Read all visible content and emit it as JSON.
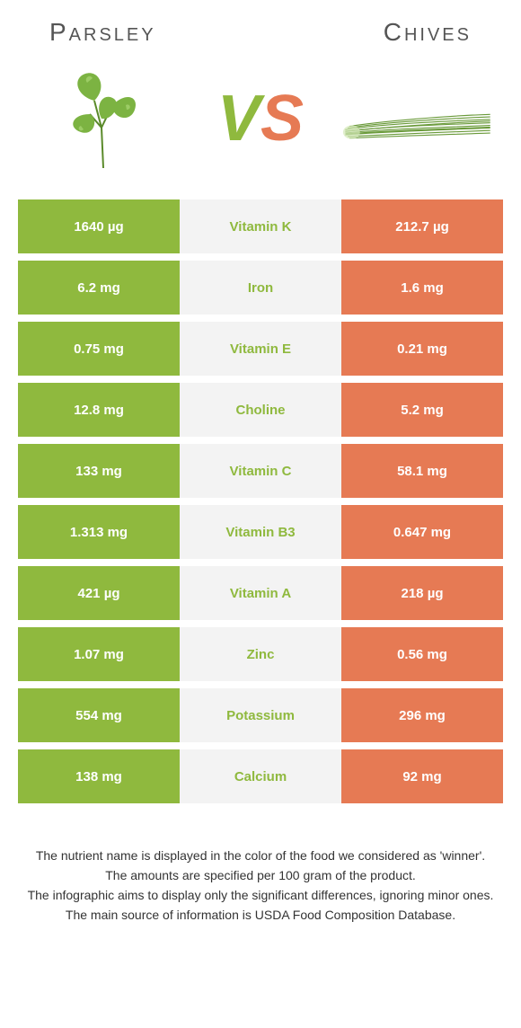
{
  "colors": {
    "left": "#8fb93e",
    "right": "#e67a54",
    "center_bg": "#f3f3f3",
    "text_dark": "#333333"
  },
  "header": {
    "left_title": "Parsley",
    "right_title": "Chives"
  },
  "vs": {
    "v": "V",
    "s": "S"
  },
  "rows": [
    {
      "left": "1640 µg",
      "label": "Vitamin K",
      "right": "212.7 µg",
      "winner": "left"
    },
    {
      "left": "6.2 mg",
      "label": "Iron",
      "right": "1.6 mg",
      "winner": "left"
    },
    {
      "left": "0.75 mg",
      "label": "Vitamin E",
      "right": "0.21 mg",
      "winner": "left"
    },
    {
      "left": "12.8 mg",
      "label": "Choline",
      "right": "5.2 mg",
      "winner": "left"
    },
    {
      "left": "133 mg",
      "label": "Vitamin C",
      "right": "58.1 mg",
      "winner": "left"
    },
    {
      "left": "1.313 mg",
      "label": "Vitamin B3",
      "right": "0.647 mg",
      "winner": "left"
    },
    {
      "left": "421 µg",
      "label": "Vitamin A",
      "right": "218 µg",
      "winner": "left"
    },
    {
      "left": "1.07 mg",
      "label": "Zinc",
      "right": "0.56 mg",
      "winner": "left"
    },
    {
      "left": "554 mg",
      "label": "Potassium",
      "right": "296 mg",
      "winner": "left"
    },
    {
      "left": "138 mg",
      "label": "Calcium",
      "right": "92 mg",
      "winner": "left"
    }
  ],
  "footer": {
    "line1": "The nutrient name is displayed in the color of the food we considered as 'winner'.",
    "line2": "The amounts are specified per 100 gram of the product.",
    "line3": "The infographic aims to display only the significant differences, ignoring minor ones.",
    "line4": "The main source of information is USDA Food Composition Database."
  }
}
